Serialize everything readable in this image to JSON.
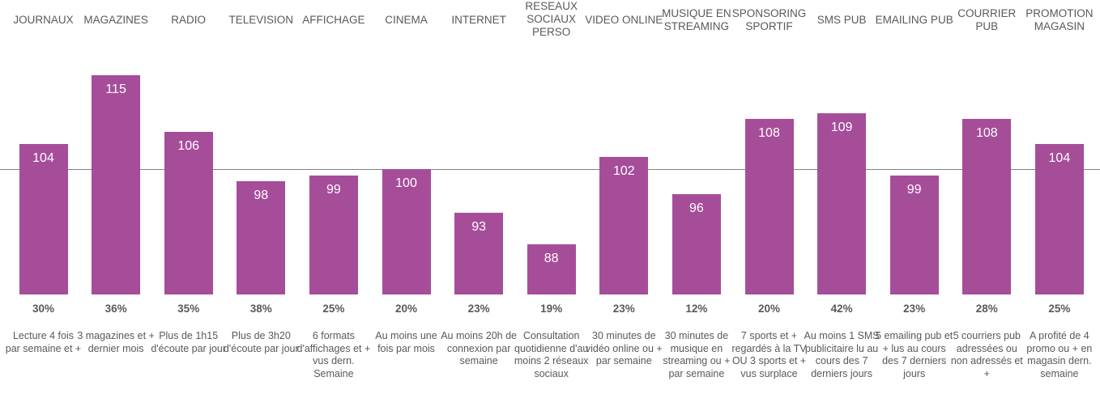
{
  "chart_data": {
    "type": "bar",
    "baseline": 100,
    "categories": [
      "JOURNAUX",
      "MAGAZINES",
      "RADIO",
      "TELEVISION",
      "AFFICHAGE",
      "CINEMA",
      "INTERNET",
      "RESEAUX SOCIAUX PERSO",
      "VIDEO ONLINE",
      "MUSIQUE EN STREAMING",
      "SPONSORING SPORTIF",
      "SMS PUB",
      "EMAILING PUB",
      "COURRIER PUB",
      "PROMOTION MAGASIN"
    ],
    "values": [
      104,
      115,
      106,
      98,
      99,
      100,
      93,
      88,
      102,
      96,
      108,
      109,
      99,
      108,
      104
    ],
    "percentages": [
      "30%",
      "36%",
      "35%",
      "38%",
      "25%",
      "20%",
      "23%",
      "19%",
      "23%",
      "12%",
      "20%",
      "42%",
      "23%",
      "28%",
      "25%"
    ],
    "descriptions": [
      "Lecture 4 fois par semaine et +",
      "3 magazines et + dernier mois",
      "Plus de 1h15 d'écoute par jour",
      "Plus de 3h20 d'écoute par jour",
      "6 formats d'affichages et + vus dern. Semaine",
      "Au moins une fois par mois",
      "Au moins 20h de connexion par semaine",
      "Consultation quotidienne d'au moins 2 réseaux sociaux",
      "30 minutes de vidéo online ou + par semaine",
      "30 minutes de musique en streaming ou + par semaine",
      "7 sports et + regardés à la TV OU 3 sports et + vus surplace",
      "Au moins 1 SMS publicitaire lu au cours des 7 derniers jours",
      "5 emailing pub et + lus au cours des 7 derniers jours",
      "5 courriers pub adressées ou non adressés et +",
      "A profité de 4 promo ou + en magasin dern. semaine"
    ],
    "colors": {
      "bar": "#a64d9a",
      "value_label": "#ffffff",
      "text": "#595959",
      "baseline": "#808080"
    }
  }
}
